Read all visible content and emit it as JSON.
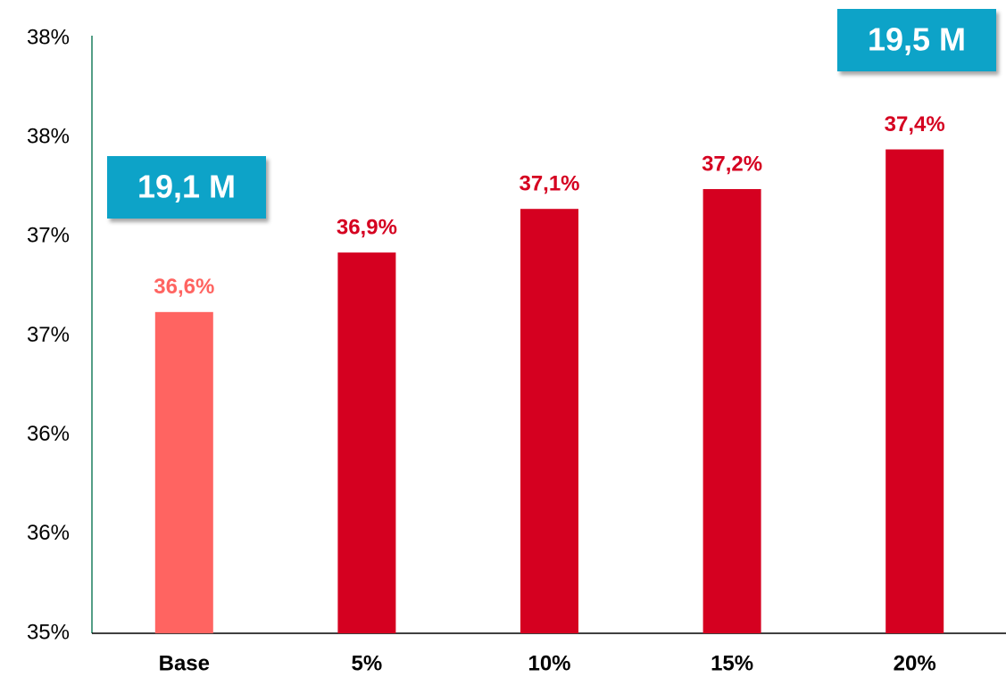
{
  "chart_data": {
    "type": "bar",
    "categories": [
      "Base",
      "5%",
      "10%",
      "15%",
      "20%"
    ],
    "values": [
      36.62,
      36.92,
      37.14,
      37.24,
      37.44
    ],
    "value_labels": [
      "36,6%",
      "36,9%",
      "37,1%",
      "37,2%",
      "37,4%"
    ],
    "colors": [
      "#ff6461",
      "#d50020",
      "#d50020",
      "#d50020",
      "#d50020"
    ],
    "ylim": [
      35,
      38
    ],
    "yticks": [
      {
        "value": 35,
        "label": "35%"
      },
      {
        "value": 35.5,
        "label": "36%"
      },
      {
        "value": 36,
        "label": "36%"
      },
      {
        "value": 36.5,
        "label": "37%"
      },
      {
        "value": 37,
        "label": "37%"
      },
      {
        "value": 37.5,
        "label": "38%"
      },
      {
        "value": 38,
        "label": "38%"
      }
    ],
    "grid": false,
    "annotations": [
      "19,1 M",
      "19,5 M"
    ]
  }
}
